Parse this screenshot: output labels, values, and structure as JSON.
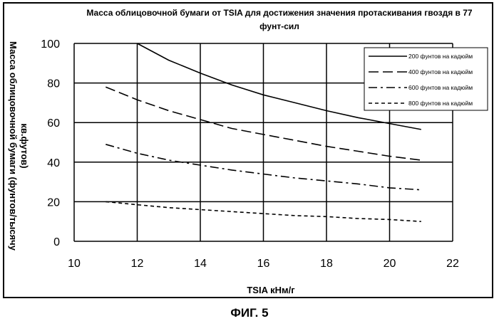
{
  "chart_data": {
    "type": "line",
    "title_lines": [
      "Масса облицовочной бумаги от TSIA для достижения значения протаскивания гвоздя в 77",
      "фунт-сил"
    ],
    "xlabel": "TSIA кНм/г",
    "ylabel_lines": [
      "Масса облицовочной бумаги (фунтов/тысячу",
      "кв.футов)"
    ],
    "xlim": [
      10,
      22
    ],
    "ylim": [
      0,
      100
    ],
    "x_ticks": [
      10,
      12,
      14,
      16,
      18,
      20,
      22
    ],
    "y_ticks": [
      0,
      20,
      40,
      60,
      80,
      100
    ],
    "grid": true,
    "legend_position": "top-right",
    "series": [
      {
        "name": "200 фунтов на кадюйм",
        "style": "solid",
        "x": [
          12,
          13,
          14,
          15,
          16,
          17,
          18,
          19,
          20,
          21
        ],
        "y": [
          100,
          91.5,
          85,
          79,
          74,
          70,
          66,
          62.5,
          59.5,
          56.5
        ]
      },
      {
        "name": "400 фунтов на кадюйм",
        "style": "dash",
        "x": [
          11,
          12,
          13,
          14,
          15,
          16,
          17,
          18,
          19,
          20,
          21
        ],
        "y": [
          78,
          71.5,
          66,
          61.5,
          57,
          54,
          51,
          48,
          45.5,
          43,
          41
        ]
      },
      {
        "name": "600 фунтов на кадюйм",
        "style": "dashdot",
        "x": [
          11,
          12,
          13,
          14,
          15,
          16,
          17,
          18,
          19,
          20,
          21
        ],
        "y": [
          49,
          44.5,
          41,
          38.5,
          36,
          34,
          32,
          30.5,
          29,
          27,
          26
        ]
      },
      {
        "name": "800 фунтов на кадюйм",
        "style": "short-dash",
        "x": [
          11,
          12,
          13,
          14,
          15,
          16,
          17,
          18,
          19,
          20,
          21
        ],
        "y": [
          20,
          18.5,
          17,
          16,
          15,
          14,
          13,
          12.5,
          11.5,
          11,
          10
        ]
      }
    ]
  },
  "figure": {
    "caption": "ФИГ. 5"
  },
  "colors": {
    "line": "#000000",
    "grid": "#000000",
    "background": "#ffffff"
  }
}
